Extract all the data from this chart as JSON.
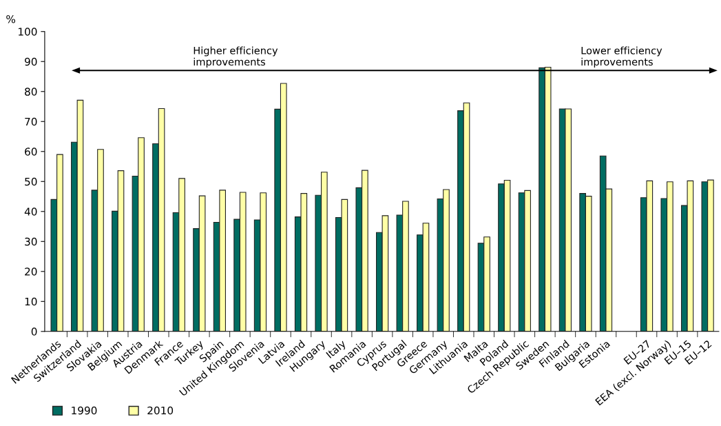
{
  "chart_data": {
    "type": "bar",
    "ylabel": "%",
    "categories": [
      "Netherlands",
      "Switzerland",
      "Slovakia",
      "Belgium",
      "Austria",
      "Denmark",
      "France",
      "Turkey",
      "Spain",
      "United Kingdom",
      "Slovenia",
      "Latvia",
      "Ireland",
      "Hungary",
      "Italy",
      "Romania",
      "Cyprus",
      "Portugal",
      "Greece",
      "Germany",
      "Lithuania",
      "Malta",
      "Poland",
      "Czech Republic",
      "Sweden",
      "Finland",
      "Bulgaria",
      "Estonia",
      null,
      "EU–27",
      "EEA (excl. Norway)",
      "EU–15",
      "EU–12"
    ],
    "series": [
      {
        "name": "1990",
        "color": "#006d62",
        "values": [
          44,
          63.1,
          47.1,
          40.1,
          51.8,
          62.6,
          39.6,
          34.3,
          36.4,
          37.4,
          37.2,
          74.1,
          38.2,
          45.4,
          38.0,
          47.9,
          33.0,
          38.8,
          32.2,
          44.2,
          73.6,
          29.4,
          49.2,
          46.2,
          87.9,
          74.2,
          46.0,
          58.5,
          null,
          44.6,
          44.3,
          42.0,
          49.9
        ]
      },
      {
        "name": "2010",
        "color": "#ffffa6",
        "values": [
          59.0,
          77.1,
          60.7,
          53.6,
          64.6,
          74.3,
          51.0,
          45.2,
          47.1,
          46.4,
          46.2,
          82.7,
          46.0,
          53.1,
          44.0,
          53.7,
          38.6,
          43.4,
          36.1,
          47.3,
          76.2,
          31.5,
          50.4,
          47.0,
          88.1,
          74.2,
          45.1,
          47.5,
          null,
          50.2,
          49.9,
          50.2,
          50.5
        ]
      }
    ],
    "ylim": [
      0,
      100
    ],
    "yticks": [
      0,
      10,
      20,
      30,
      40,
      50,
      60,
      70,
      80,
      90,
      100
    ],
    "annotations": [
      "Higher efficiency\nimprovements",
      "Lower efficiency\nimprovements"
    ],
    "grid": false,
    "legend": "bottom left"
  }
}
